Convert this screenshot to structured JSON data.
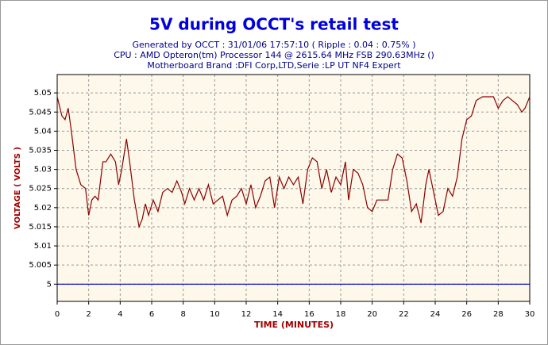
{
  "chart_data": {
    "type": "line",
    "title": "5V during OCCT's retail test",
    "subtitle": [
      "Generated by OCCT : 31/01/06 17:57:10 ( Ripple : 0.04 : 0.75% )",
      "CPU : AMD Opteron(tm) Processor 144    @ 2615.64 MHz FSB 290.63MHz ()",
      "Motherboard Brand :DFI Corp,LTD,Serie :LP UT NF4 Expert"
    ],
    "xlabel": "TIME (MINUTES)",
    "ylabel": "VOLTAGE ( VOLTS )",
    "xlim": [
      0,
      30
    ],
    "xticks": [
      0,
      2,
      4,
      6,
      8,
      10,
      12,
      14,
      16,
      18,
      20,
      22,
      24,
      26,
      28,
      30
    ],
    "ylim": [
      4.9955,
      5.0548
    ],
    "yticks": [
      5,
      5.005,
      5.01,
      5.015,
      5.02,
      5.025,
      5.03,
      5.035,
      5.04,
      5.045,
      5.05
    ],
    "grid": true,
    "series": [
      {
        "color": "#8b0000",
        "x": [
          0,
          0.3,
          0.5,
          0.7,
          0.9,
          1.2,
          1.5,
          1.8,
          2.0,
          2.2,
          2.4,
          2.6,
          2.9,
          3.1,
          3.4,
          3.7,
          3.9,
          4.1,
          4.4,
          4.6,
          4.9,
          5.2,
          5.4,
          5.6,
          5.8,
          6.1,
          6.4,
          6.7,
          7.0,
          7.3,
          7.6,
          7.9,
          8.1,
          8.4,
          8.7,
          9.0,
          9.3,
          9.6,
          9.9,
          10.2,
          10.5,
          10.8,
          11.1,
          11.4,
          11.7,
          12.0,
          12.3,
          12.6,
          12.9,
          13.2,
          13.5,
          13.8,
          14.1,
          14.4,
          14.7,
          15.0,
          15.3,
          15.6,
          15.9,
          16.2,
          16.5,
          16.8,
          17.1,
          17.4,
          17.7,
          18.0,
          18.3,
          18.5,
          18.8,
          19.1,
          19.4,
          19.7,
          20.0,
          20.3,
          20.6,
          21.0,
          21.3,
          21.6,
          21.9,
          22.2,
          22.5,
          22.8,
          23.1,
          23.4,
          23.6,
          23.9,
          24.2,
          24.5,
          24.8,
          25.1,
          25.4,
          25.7,
          26.0,
          26.3,
          26.6,
          27.0,
          27.4,
          27.7,
          28.0,
          28.3,
          28.6,
          28.9,
          29.2,
          29.5,
          29.7,
          30
        ],
        "values": [
          5.049,
          5.044,
          5.043,
          5.046,
          5.04,
          5.03,
          5.026,
          5.025,
          5.018,
          5.022,
          5.023,
          5.022,
          5.032,
          5.032,
          5.034,
          5.032,
          5.026,
          5.03,
          5.038,
          5.032,
          5.022,
          5.015,
          5.017,
          5.021,
          5.018,
          5.022,
          5.019,
          5.024,
          5.025,
          5.024,
          5.027,
          5.024,
          5.021,
          5.025,
          5.022,
          5.025,
          5.022,
          5.026,
          5.021,
          5.022,
          5.023,
          5.018,
          5.022,
          5.023,
          5.025,
          5.021,
          5.026,
          5.02,
          5.023,
          5.027,
          5.028,
          5.02,
          5.028,
          5.025,
          5.028,
          5.026,
          5.028,
          5.021,
          5.03,
          5.033,
          5.032,
          5.025,
          5.03,
          5.024,
          5.028,
          5.026,
          5.032,
          5.022,
          5.03,
          5.029,
          5.026,
          5.02,
          5.019,
          5.022,
          5.022,
          5.022,
          5.03,
          5.034,
          5.033,
          5.027,
          5.019,
          5.021,
          5.016,
          5.026,
          5.03,
          5.024,
          5.018,
          5.019,
          5.025,
          5.023,
          5.028,
          5.038,
          5.043,
          5.044,
          5.048,
          5.049,
          5.049,
          5.049,
          5.046,
          5.048,
          5.049,
          5.048,
          5.047,
          5.045,
          5.046,
          5.049
        ]
      },
      {
        "color": "#0000cc",
        "x": [
          0,
          30
        ],
        "values": [
          5,
          5
        ]
      }
    ]
  }
}
